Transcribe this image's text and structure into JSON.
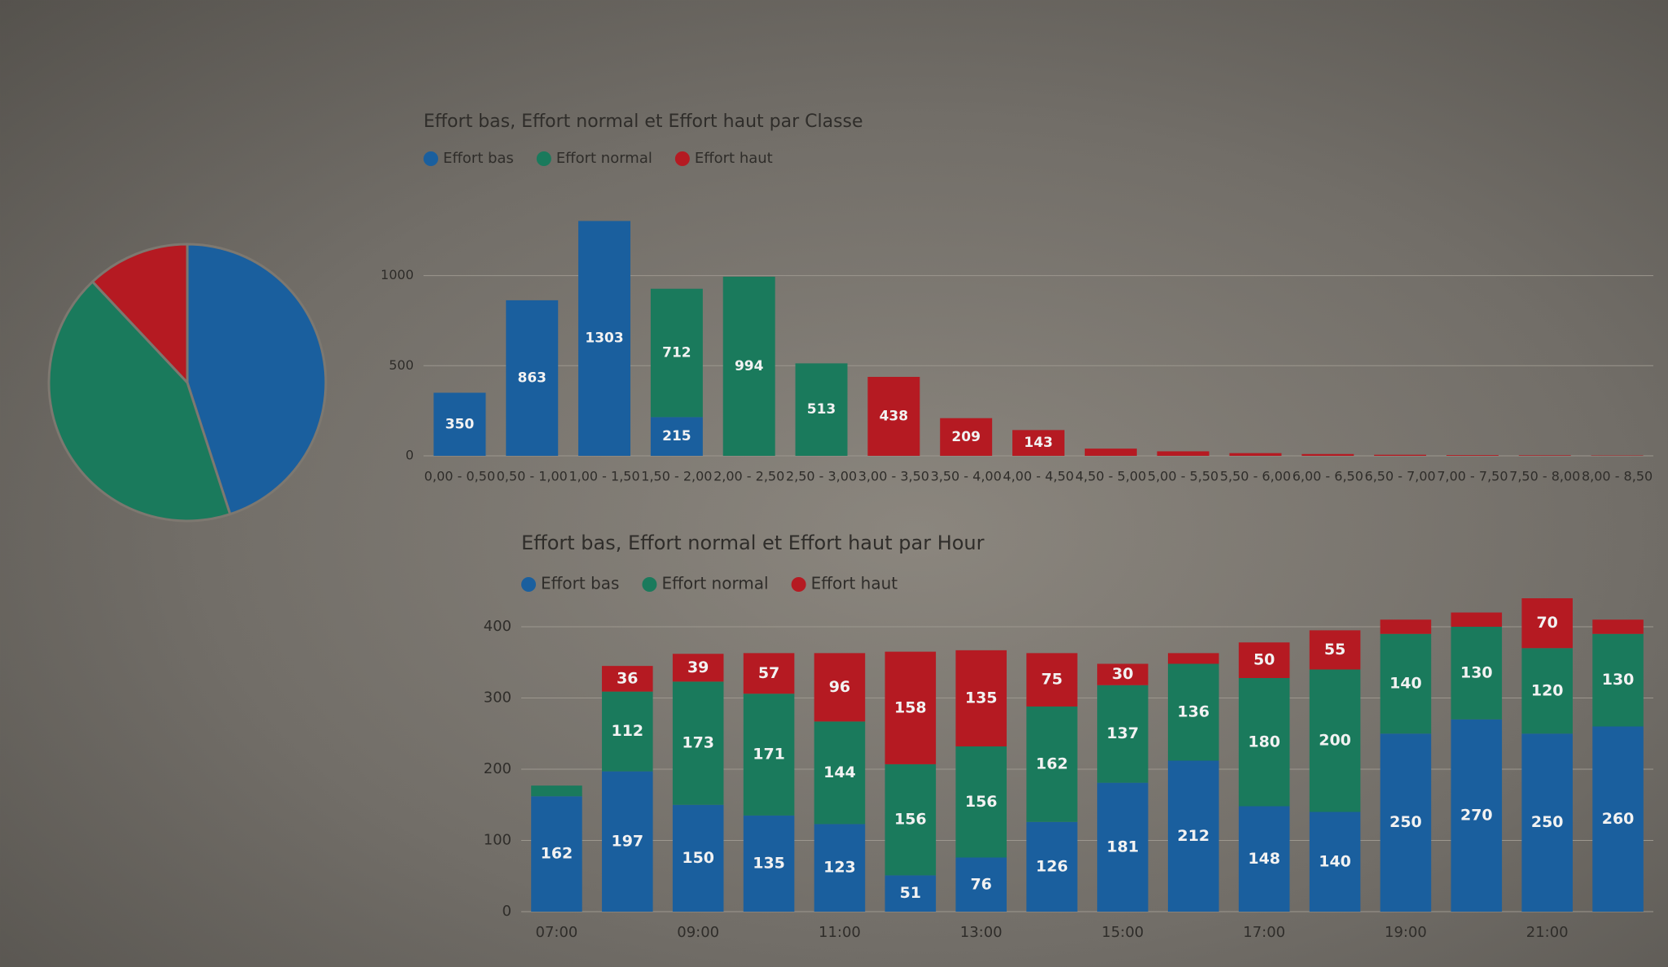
{
  "chart_data": [
    {
      "type": "pie",
      "values": [
        45,
        43,
        12
      ],
      "colors": [
        "#1a5f9e",
        "#1a7a5c",
        "#b51a22"
      ]
    },
    {
      "type": "bar",
      "stacked": true,
      "title": "Effort bas, Effort normal et Effort haut par Classe",
      "categories": [
        "0,00 - 0,50",
        "0,50 - 1,00",
        "1,00 - 1,50",
        "1,50 - 2,00",
        "2,00 - 2,50",
        "2,50 - 3,00",
        "3,00 - 3,50",
        "3,50 - 4,00",
        "4,00 - 4,50",
        "4,50 - 5,00",
        "5,00 - 5,50",
        "5,50 - 6,00",
        "6,00 - 6,50",
        "6,50 - 7,00",
        "7,00 - 7,50",
        "7,50 - 8,00",
        "8,00 - 8,50"
      ],
      "series": [
        {
          "name": "Effort bas",
          "color": "#1a5f9e",
          "values": [
            350,
            863,
            1303,
            215,
            0,
            0,
            0,
            0,
            0,
            0,
            0,
            0,
            0,
            0,
            0,
            0,
            0
          ]
        },
        {
          "name": "Effort normal",
          "color": "#1a7a5c",
          "values": [
            0,
            0,
            0,
            712,
            994,
            513,
            0,
            0,
            0,
            0,
            0,
            0,
            0,
            0,
            0,
            0,
            0
          ]
        },
        {
          "name": "Effort haut",
          "color": "#b51a22",
          "values": [
            0,
            0,
            0,
            0,
            0,
            0,
            438,
            209,
            143,
            40,
            25,
            15,
            10,
            6,
            4,
            3,
            2
          ]
        }
      ],
      "ylim": [
        0,
        1400
      ],
      "yticks": [
        0,
        500,
        1000
      ],
      "grid": true
    },
    {
      "type": "bar",
      "stacked": true,
      "title": "Effort bas, Effort normal et Effort haut par Hour",
      "categories": [
        "07:00",
        null,
        "09:00",
        null,
        "11:00",
        null,
        "13:00",
        null,
        "15:00",
        null,
        "17:00",
        null,
        "19:00",
        null,
        "21:00",
        null
      ],
      "series": [
        {
          "name": "Effort bas",
          "color": "#1a5f9e",
          "values": [
            162,
            197,
            150,
            135,
            123,
            51,
            76,
            126,
            181,
            212,
            148,
            140,
            250,
            270,
            250,
            260
          ]
        },
        {
          "name": "Effort normal",
          "color": "#1a7a5c",
          "values": [
            15,
            112,
            173,
            171,
            144,
            156,
            156,
            162,
            137,
            136,
            180,
            200,
            140,
            130,
            120,
            130
          ]
        },
        {
          "name": "Effort haut",
          "color": "#b51a22",
          "values": [
            0,
            36,
            39,
            57,
            96,
            158,
            135,
            75,
            30,
            15,
            50,
            55,
            20,
            20,
            70,
            20
          ]
        }
      ],
      "ylim": [
        0,
        400
      ],
      "yticks": [
        0,
        100,
        200,
        300,
        400
      ],
      "grid": true
    }
  ]
}
